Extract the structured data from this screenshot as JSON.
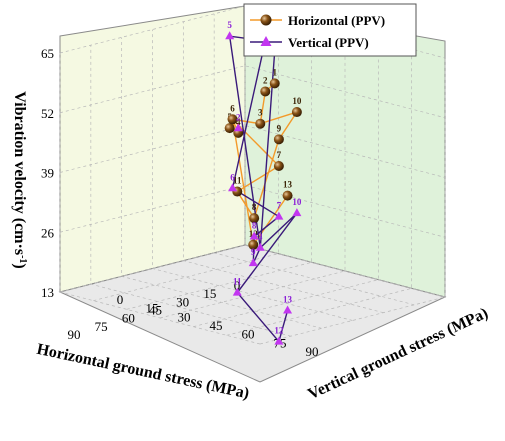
{
  "chart_data": {
    "type": "scatter3d",
    "title": "",
    "xlabel": "Horizontal ground stress (MPa)",
    "ylabel": "Vertical ground stress (MPa)",
    "zlabel": "Vibration velocity (cm·s⁻¹)",
    "zlabel_main": "Vibration velocity (cm·s",
    "zlabel_sup": "-1",
    "zlabel_end": ")",
    "xlim": [
      0,
      90
    ],
    "ylim": [
      0,
      90
    ],
    "zlim": [
      13,
      65
    ],
    "xticks": [
      "0",
      "15",
      "30",
      "45",
      "60",
      "75",
      "90"
    ],
    "yticks": [
      "0",
      "15",
      "30",
      "45",
      "60",
      "75",
      "90"
    ],
    "zticks": [
      "13",
      "26",
      "39",
      "52",
      "65"
    ],
    "legend_position": "top-right",
    "series": [
      {
        "name": "Horizontal (PPV)",
        "color": "#f39a2a",
        "marker": "sphere",
        "marker_color": "#7a4a12",
        "points": [
          {
            "label": "1",
            "x": 5,
            "y": 18,
            "z": 51
          },
          {
            "label": "2",
            "x": 15,
            "y": 23,
            "z": 51
          },
          {
            "label": "3",
            "x": 25,
            "y": 30,
            "z": 46
          },
          {
            "label": "4",
            "x": 13,
            "y": 9,
            "z": 40
          },
          {
            "label": "5",
            "x": 28,
            "y": 19,
            "z": 44
          },
          {
            "label": "6",
            "x": 32,
            "y": 24,
            "z": 47
          },
          {
            "label": "7",
            "x": 30,
            "y": 43,
            "z": 39
          },
          {
            "label": "8",
            "x": 55,
            "y": 55,
            "z": 32
          },
          {
            "label": "9",
            "x": 70,
            "y": 80,
            "z": 54
          },
          {
            "label": "10",
            "x": 18,
            "y": 40,
            "z": 49
          },
          {
            "label": "11",
            "x": 47,
            "y": 40,
            "z": 35
          },
          {
            "label": "12",
            "x": 63,
            "y": 62,
            "z": 28
          },
          {
            "label": "13",
            "x": 82,
            "y": 95,
            "z": 45
          }
        ],
        "path": [
          "1",
          "2",
          "3",
          "6",
          "5",
          "4",
          "6",
          "7",
          "11",
          "8",
          "9",
          "10",
          "3",
          "6",
          "12",
          "13"
        ]
      },
      {
        "name": "Vertical (PPV)",
        "color": "#3a1a7a",
        "marker": "triangle",
        "marker_color": "#c236f0",
        "points": [
          {
            "label": "1",
            "x": 5,
            "y": 18,
            "z": 58
          },
          {
            "label": "2",
            "x": 13,
            "y": 9,
            "z": 41
          },
          {
            "label": "3",
            "x": 25,
            "y": 30,
            "z": 19
          },
          {
            "label": "4",
            "x": 15,
            "y": 23,
            "z": 62
          },
          {
            "label": "5",
            "x": 28,
            "y": 19,
            "z": 64
          },
          {
            "label": "6",
            "x": 32,
            "y": 24,
            "z": 32
          },
          {
            "label": "7",
            "x": 30,
            "y": 43,
            "z": 28
          },
          {
            "label": "8",
            "x": 55,
            "y": 55,
            "z": 28
          },
          {
            "label": "9",
            "x": 63,
            "y": 62,
            "z": 24
          },
          {
            "label": "10",
            "x": 18,
            "y": 40,
            "z": 27
          },
          {
            "label": "11",
            "x": 47,
            "y": 40,
            "z": 13
          },
          {
            "label": "12",
            "x": 70,
            "y": 80,
            "z": 10
          },
          {
            "label": "13",
            "x": 82,
            "y": 95,
            "z": 20
          }
        ],
        "path": [
          "1",
          "3",
          "9",
          "8",
          "7",
          "6",
          "4",
          "5",
          "3",
          "10",
          "11",
          "12",
          "13"
        ]
      }
    ]
  }
}
